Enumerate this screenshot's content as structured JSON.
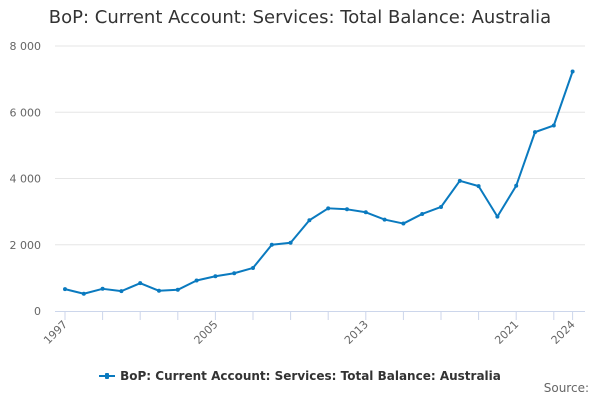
{
  "title": "BoP: Current Account: Services: Total Balance: Australia",
  "legend": {
    "label": "BoP: Current Account: Services: Total Balance: Australia"
  },
  "source_label": "Source:",
  "colors": {
    "series": "#0a7abf",
    "grid": "#e6e6e6",
    "axis": "#ccd6eb",
    "text": "#333333",
    "tick_text": "#666666"
  },
  "y_axis": {
    "ticks": [
      "0",
      "2 000",
      "4 000",
      "6 000",
      "8 000"
    ]
  },
  "x_axis": {
    "ticks": [
      "1997",
      "2005",
      "2013",
      "2021",
      "2024"
    ]
  },
  "chart_data": {
    "type": "line",
    "title": "BoP: Current Account: Services: Total Balance: Australia",
    "xlabel": "",
    "ylabel": "",
    "x": [
      1997,
      1998,
      1999,
      2000,
      2001,
      2002,
      2003,
      2004,
      2005,
      2006,
      2007,
      2008,
      2009,
      2010,
      2011,
      2012,
      2013,
      2014,
      2015,
      2016,
      2017,
      2018,
      2019,
      2020,
      2021,
      2022,
      2023,
      2024
    ],
    "series": [
      {
        "name": "BoP: Current Account: Services: Total Balance: Australia",
        "values": [
          660,
          520,
          670,
          600,
          840,
          610,
          640,
          920,
          1050,
          1140,
          1300,
          2000,
          2060,
          2740,
          3100,
          3070,
          2980,
          2760,
          2640,
          2930,
          3140,
          3930,
          3770,
          2850,
          3780,
          5400,
          5600,
          7230
        ]
      }
    ],
    "ylim": [
      0,
      8000
    ],
    "y_ticks": [
      0,
      2000,
      4000,
      6000,
      8000
    ],
    "x_tick_labels": [
      "1997",
      "2005",
      "2013",
      "2021",
      "2024"
    ],
    "grid": true,
    "legend_position": "bottom",
    "source": "Source:"
  }
}
